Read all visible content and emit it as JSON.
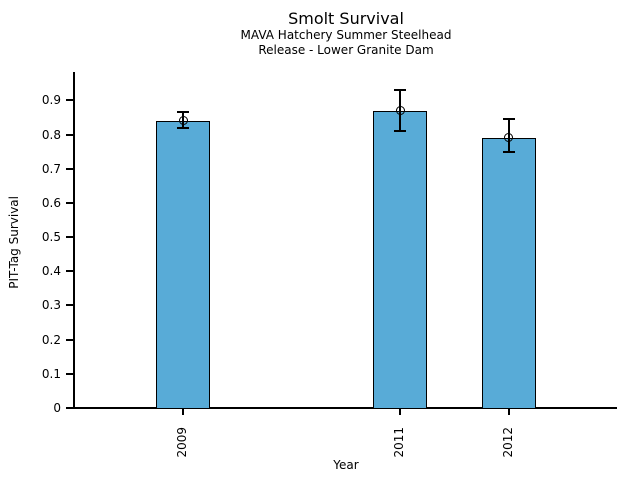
{
  "header": {
    "title": "Smolt Survival",
    "subtitle1": "MAVA Hatchery Summer Steelhead",
    "subtitle2": "Release - Lower Granite Dam"
  },
  "chart_data": {
    "type": "bar",
    "title": "Smolt Survival",
    "subtitle": [
      "MAVA Hatchery Summer Steelhead",
      "Release - Lower Granite Dam"
    ],
    "xlabel": "Year",
    "ylabel": "PIT-Tag Survival",
    "categories": [
      "2009",
      "2011",
      "2012"
    ],
    "x_numeric": [
      2009,
      2011,
      2012
    ],
    "values": [
      0.84,
      0.87,
      0.79
    ],
    "error_low": [
      0.82,
      0.81,
      0.75
    ],
    "error_high": [
      0.865,
      0.93,
      0.845
    ],
    "marker": "open-circle",
    "xlim": [
      2008,
      2013
    ],
    "ylim": [
      0,
      0.98
    ],
    "yticks": [
      0,
      0.1,
      0.2,
      0.3,
      0.4,
      0.5,
      0.6,
      0.7,
      0.8,
      0.9
    ],
    "ytick_labels": [
      "0",
      "0.1",
      "0.2",
      "0.3",
      "0.4",
      "0.5",
      "0.6",
      "0.7",
      "0.8",
      "0.9"
    ],
    "bar_width_x_units": 0.5,
    "bar_color": "#58ABD7",
    "bar_border_color": "#000000",
    "axis_color": "#000000",
    "background_color": "#ffffff",
    "grid": false,
    "legend": false
  }
}
